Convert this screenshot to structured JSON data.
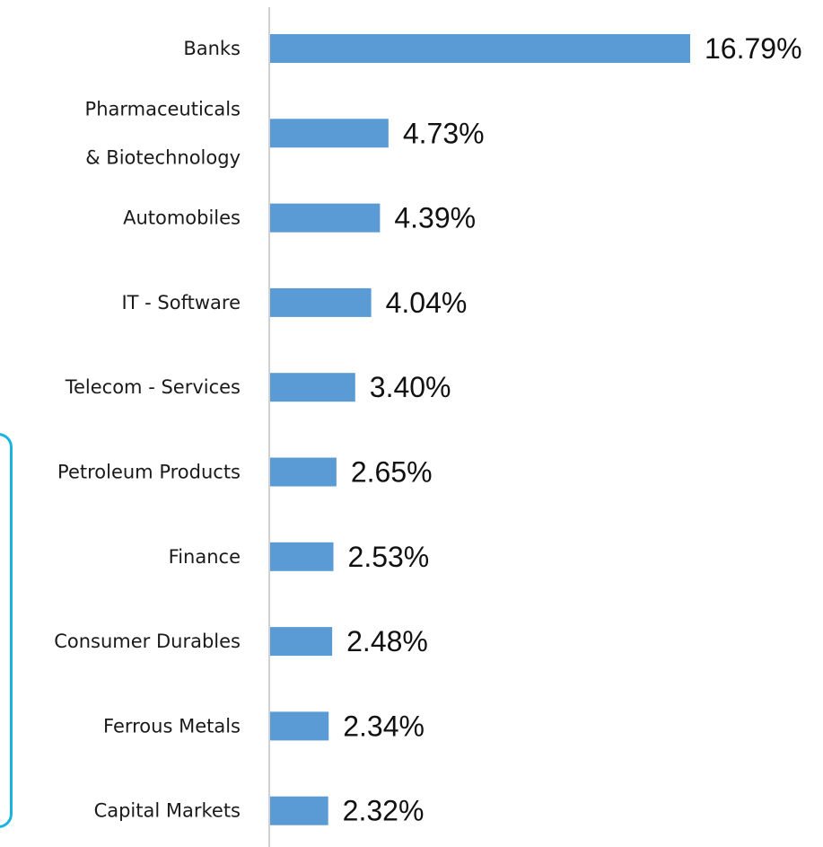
{
  "chart_data": {
    "type": "bar",
    "orientation": "horizontal",
    "categories": [
      [
        "Banks"
      ],
      [
        "Pharmaceuticals",
        "& Biotechnology"
      ],
      [
        "Automobiles"
      ],
      [
        "IT - Software"
      ],
      [
        "Telecom - Services"
      ],
      [
        "Petroleum Products"
      ],
      [
        "Finance"
      ],
      [
        "Consumer Durables"
      ],
      [
        "Ferrous Metals"
      ],
      [
        "Capital Markets"
      ]
    ],
    "values": [
      16.79,
      4.73,
      4.39,
      4.04,
      3.4,
      2.65,
      2.53,
      2.48,
      2.34,
      2.32
    ],
    "value_labels": [
      "16.79%",
      "4.73%",
      "4.39%",
      "4.04%",
      "3.40%",
      "2.65%",
      "2.53%",
      "2.48%",
      "2.34%",
      "2.32%"
    ],
    "bar_color": "#5b9bd5",
    "axis_color": "#d0d0d0",
    "title": "",
    "xlabel": "",
    "ylabel": "",
    "grid": false,
    "legend": "none"
  },
  "frame_color": "#1bb3e0"
}
